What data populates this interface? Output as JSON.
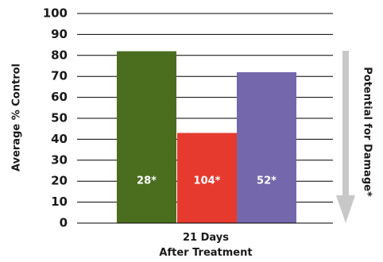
{
  "chart_data": {
    "type": "bar",
    "title": "",
    "xlabel": "",
    "ylabel": "Average % Control",
    "ylim": [
      0,
      100
    ],
    "yticks": [
      0,
      10,
      20,
      30,
      40,
      50,
      60,
      70,
      80,
      90,
      100
    ],
    "grid": true,
    "category_label": [
      "21 Days",
      "After Treatment"
    ],
    "bars": [
      {
        "value": 82,
        "label": "28*",
        "color": "#4a6e1e"
      },
      {
        "value": 43,
        "label": "104*",
        "color": "#e63a2e"
      },
      {
        "value": 72,
        "label": "52*",
        "color": "#7467ac"
      }
    ],
    "side_annotation": {
      "text": "Potential for Damage*",
      "arrow": "down",
      "color": "#c8c8c8"
    }
  }
}
